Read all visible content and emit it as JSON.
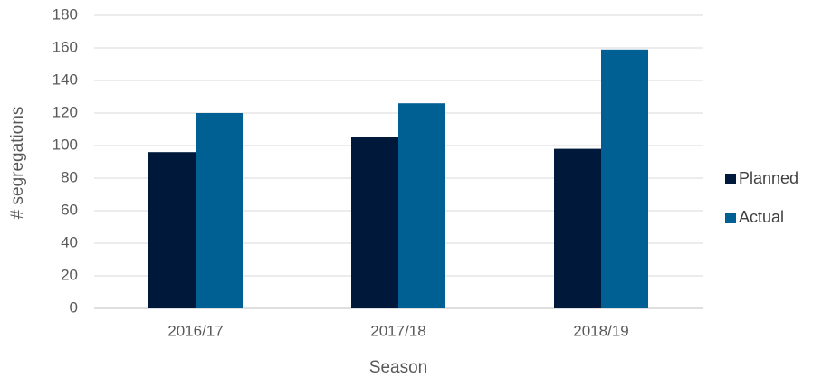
{
  "chart_data": {
    "type": "bar",
    "categories": [
      "2016/17",
      "2017/18",
      "2018/19"
    ],
    "series": [
      {
        "name": "Planned",
        "color": "#00193b",
        "values": [
          96,
          105,
          98
        ]
      },
      {
        "name": "Actual",
        "color": "#006094",
        "values": [
          120,
          126,
          159
        ]
      }
    ],
    "x_label": "Season",
    "y_label": "# segregations",
    "ylim": [
      0,
      180
    ],
    "yticks": [
      0,
      20,
      40,
      60,
      80,
      100,
      120,
      140,
      160,
      180
    ],
    "grid": true,
    "legend": "right"
  }
}
